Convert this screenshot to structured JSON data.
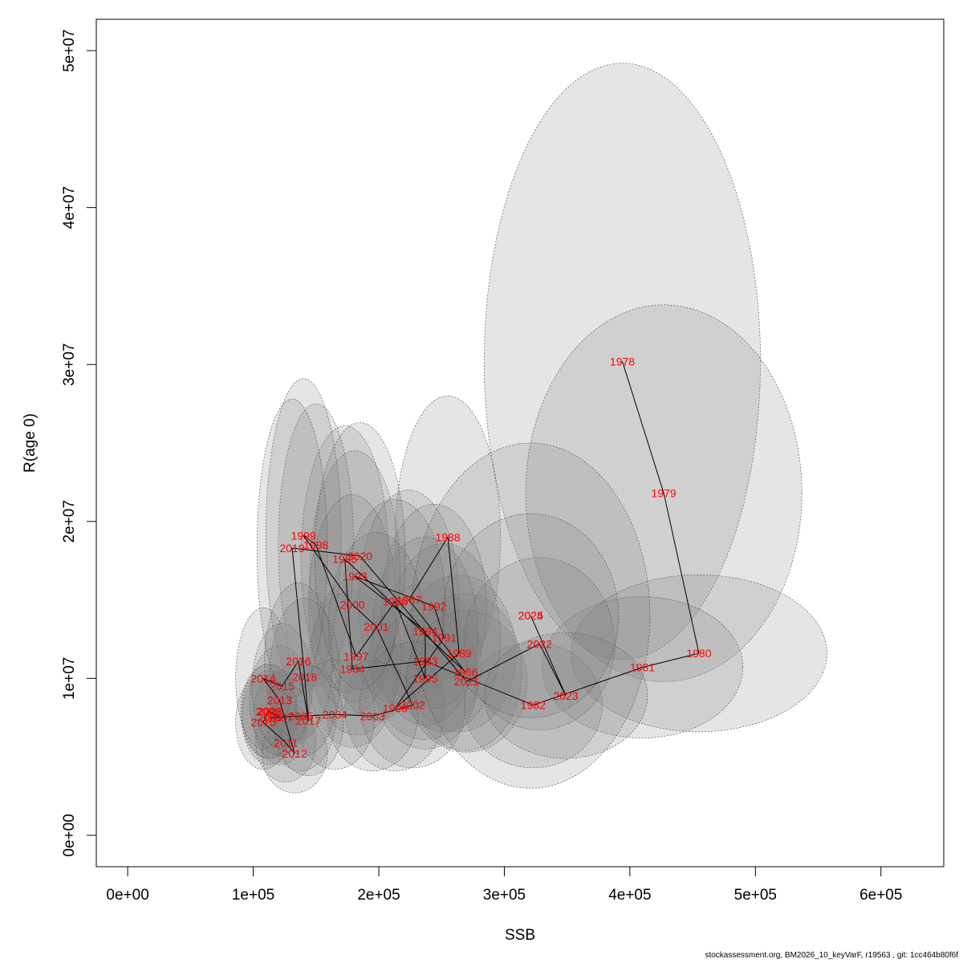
{
  "footer": {
    "note": "stockassessment.org, BM2026_10_keyVarF, r19563 , git: 1cc464b80f6f"
  },
  "chart_data": {
    "type": "scatter",
    "xlabel": "SSB",
    "ylabel": "R(age 0)",
    "xlim": [
      -25000,
      650000
    ],
    "ylim": [
      -2000000,
      52000000
    ],
    "x_ticks": [
      0,
      100000,
      200000,
      300000,
      400000,
      500000,
      600000
    ],
    "x_tick_labels": [
      "0e+00",
      "1e+05",
      "2e+05",
      "3e+05",
      "4e+05",
      "5e+05",
      "6e+05"
    ],
    "y_ticks": [
      0,
      10000000,
      20000000,
      30000000,
      40000000,
      50000000
    ],
    "y_tick_labels": [
      "0e+00",
      "1e+07",
      "2e+07",
      "3e+07",
      "4e+07",
      "5e+07"
    ],
    "grid": false,
    "ellipse_fill": "#7f7f7f",
    "ellipse_opacity": 0.2,
    "ellipse_stroke": "#444444",
    "line_color": "#000000",
    "label_color": "#ff0000",
    "points": [
      {
        "year": "1978",
        "ssb": 394000,
        "rec": 30200000,
        "sx": 110000,
        "sy": 19000000
      },
      {
        "year": "1979",
        "ssb": 427000,
        "rec": 21800000,
        "sx": 110000,
        "sy": 12000000
      },
      {
        "year": "1980",
        "ssb": 455000,
        "rec": 11600000,
        "sx": 102000,
        "sy": 5000000
      },
      {
        "year": "1981",
        "ssb": 410000,
        "rec": 10700000,
        "sx": 80000,
        "sy": 4500000
      },
      {
        "year": "1982",
        "ssb": 323000,
        "rec": 8300000,
        "sx": 55000,
        "sy": 4000000
      },
      {
        "year": "1983",
        "ssb": 237000,
        "rec": 11100000,
        "sx": 45000,
        "sy": 5000000
      },
      {
        "year": "1984",
        "ssb": 179000,
        "rec": 10600000,
        "sx": 36000,
        "sy": 5000000
      },
      {
        "year": "1985",
        "ssb": 173000,
        "rec": 17600000,
        "sx": 35000,
        "sy": 8500000
      },
      {
        "year": "1986",
        "ssb": 269000,
        "rec": 10400000,
        "sx": 45000,
        "sy": 5000000
      },
      {
        "year": "1987",
        "ssb": 224000,
        "rec": 15000000,
        "sx": 40000,
        "sy": 7000000
      },
      {
        "year": "1988",
        "ssb": 255000,
        "rec": 19000000,
        "sx": 42000,
        "sy": 9000000
      },
      {
        "year": "1989",
        "ssb": 264000,
        "rec": 11600000,
        "sx": 45000,
        "sy": 5000000
      },
      {
        "year": "1990",
        "ssb": 213000,
        "rec": 8100000,
        "sx": 40000,
        "sy": 4000000
      },
      {
        "year": "1991",
        "ssb": 252000,
        "rec": 12600000,
        "sx": 45000,
        "sy": 6000000
      },
      {
        "year": "1992",
        "ssb": 244000,
        "rec": 14600000,
        "sx": 42000,
        "sy": 6500000
      },
      {
        "year": "1993",
        "ssb": 181000,
        "rec": 16500000,
        "sx": 36000,
        "sy": 8000000
      },
      {
        "year": "1994",
        "ssb": 237000,
        "rec": 13000000,
        "sx": 42000,
        "sy": 6000000
      },
      {
        "year": "1995",
        "ssb": 237000,
        "rec": 10000000,
        "sx": 42000,
        "sy": 4500000
      },
      {
        "year": "1996",
        "ssb": 213000,
        "rec": 14900000,
        "sx": 40000,
        "sy": 6500000
      },
      {
        "year": "1997",
        "ssb": 182000,
        "rec": 11400000,
        "sx": 36000,
        "sy": 5000000
      },
      {
        "year": "1998",
        "ssb": 150000,
        "rec": 18500000,
        "sx": 30000,
        "sy": 9000000
      },
      {
        "year": "1999",
        "ssb": 140000,
        "rec": 19100000,
        "sx": 30000,
        "sy": 10000000
      },
      {
        "year": "2000",
        "ssb": 179000,
        "rec": 14700000,
        "sx": 35000,
        "sy": 7000000
      },
      {
        "year": "2001",
        "ssb": 198000,
        "rec": 13300000,
        "sx": 38000,
        "sy": 6000000
      },
      {
        "year": "2002",
        "ssb": 227000,
        "rec": 8300000,
        "sx": 42000,
        "sy": 4000000
      },
      {
        "year": "2003",
        "ssb": 195000,
        "rec": 7600000,
        "sx": 36000,
        "sy": 3500000
      },
      {
        "year": "2004",
        "ssb": 165000,
        "rec": 7700000,
        "sx": 32000,
        "sy": 3500000
      },
      {
        "year": "2005",
        "ssb": 138000,
        "rec": 7600000,
        "sx": 28000,
        "sy": 3500000
      },
      {
        "year": "2006",
        "ssb": 113000,
        "rec": 7500000,
        "sx": 22000,
        "sy": 3000000
      },
      {
        "year": "2007",
        "ssb": 122000,
        "rec": 7500000,
        "sx": 22000,
        "sy": 3000000
      },
      {
        "year": "2008",
        "ssb": 113000,
        "rec": 7900000,
        "sx": 22000,
        "sy": 3000000
      },
      {
        "year": "2009",
        "ssb": 112000,
        "rec": 7900000,
        "sx": 22000,
        "sy": 3000000
      },
      {
        "year": "2010",
        "ssb": 108000,
        "rec": 7200000,
        "sx": 22000,
        "sy": 3000000
      },
      {
        "year": "2011",
        "ssb": 126000,
        "rec": 5900000,
        "sx": 24000,
        "sy": 2500000
      },
      {
        "year": "2012",
        "ssb": 133000,
        "rec": 5200000,
        "sx": 26000,
        "sy": 2500000
      },
      {
        "year": "2013",
        "ssb": 121000,
        "rec": 8600000,
        "sx": 24000,
        "sy": 3500000
      },
      {
        "year": "2014",
        "ssb": 108000,
        "rec": 10000000,
        "sx": 22000,
        "sy": 4500000
      },
      {
        "year": "2015",
        "ssb": 123000,
        "rec": 9500000,
        "sx": 24000,
        "sy": 4000000
      },
      {
        "year": "2016",
        "ssb": 136000,
        "rec": 11100000,
        "sx": 27000,
        "sy": 5000000
      },
      {
        "year": "2017",
        "ssb": 144000,
        "rec": 7300000,
        "sx": 28000,
        "sy": 3500000
      },
      {
        "year": "2018",
        "ssb": 141000,
        "rec": 10100000,
        "sx": 28000,
        "sy": 5000000
      },
      {
        "year": "2019",
        "ssb": 131000,
        "rec": 18300000,
        "sx": 28000,
        "sy": 9500000
      },
      {
        "year": "2020",
        "ssb": 185000,
        "rec": 17800000,
        "sx": 36000,
        "sy": 8500000
      },
      {
        "year": "2021",
        "ssb": 270000,
        "rec": 9800000,
        "sx": 48000,
        "sy": 4500000
      },
      {
        "year": "2022",
        "ssb": 328000,
        "rec": 12200000,
        "sx": 60000,
        "sy": 5500000
      },
      {
        "year": "2023",
        "ssb": 349000,
        "rec": 8900000,
        "sx": 65000,
        "sy": 4000000
      },
      {
        "year": "2024",
        "ssb": 321000,
        "rec": 14000000,
        "sx": 95000,
        "sy": 11000000
      },
      {
        "year": "2025",
        "ssb": 321000,
        "rec": 14000000,
        "sx": 70000,
        "sy": 6500000
      }
    ]
  }
}
